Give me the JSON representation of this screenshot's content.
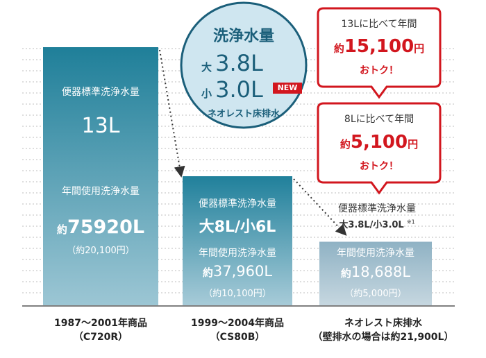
{
  "chart_data": {
    "type": "bar",
    "categories": [
      "1987〜2001年商品 (C720R)",
      "1999〜2004年商品 (CS80B)",
      "ネオレスト床排水"
    ],
    "series": [
      {
        "values": [
          75920,
          37960,
          18688
        ]
      }
    ],
    "grid": true,
    "ylim": [
      0,
      100000
    ]
  },
  "x_labels": [
    {
      "line1": "1987〜2001年商品",
      "line2": "（C720R）"
    },
    {
      "line1": "1999〜2004年商品",
      "line2": "（CS80B）"
    },
    {
      "line1": "ネオレスト床排水",
      "line2": "（壁排水の場合は約21,900L）"
    }
  ],
  "bars": [
    {
      "std_label": "便器標準洗浄水量",
      "std_value": "13L",
      "annual_label": "年間使用洗浄水量",
      "annual_prefix": "約",
      "annual_value": "75920L",
      "annual_yen": "（約20,100円）"
    },
    {
      "std_label": "便器標準洗浄水量",
      "std_value": "大8L/小6L",
      "annual_label": "年間使用洗浄水量",
      "annual_prefix": "約",
      "annual_value": "37,960L",
      "annual_yen": "（約10,100円）"
    },
    {
      "std_label": "便器標準洗浄水量",
      "std_value_big": "大3.8L",
      "std_value_sep": "/",
      "std_value_small": "小3.0L",
      "std_note": "※1",
      "annual_label": "年間使用洗浄水量",
      "annual_prefix": "約",
      "annual_value": "18,688L",
      "annual_yen": "（約5,000円）"
    }
  ],
  "circle": {
    "title": "洗浄水量",
    "big_label": "大",
    "big_value": "3.8L",
    "small_label": "小",
    "small_value": "3.0L",
    "badge": "NEW",
    "footer": "ネオレスト床排水"
  },
  "callouts": [
    {
      "line1": "13Lに比べて年間",
      "prefix": "約",
      "amount": "15,100",
      "unit": "円",
      "line3": "おトク！"
    },
    {
      "line1": "8Lに比べて年間",
      "prefix": "約",
      "amount": "5,100",
      "unit": "円",
      "line3": "おトク！"
    }
  ],
  "colors": {
    "bar1_top": "#1f7f99",
    "bar1_bottom": "#9cc6d4",
    "bar2_top": "#20809b",
    "bar2_bottom": "#a7cbd8",
    "bar3_top": "#8fb2c4",
    "bar3_bottom": "#c6d7e0",
    "circle_fill": "#cfe6f0",
    "circle_stroke": "#1b5f7a",
    "callout_red": "#d2161e"
  }
}
